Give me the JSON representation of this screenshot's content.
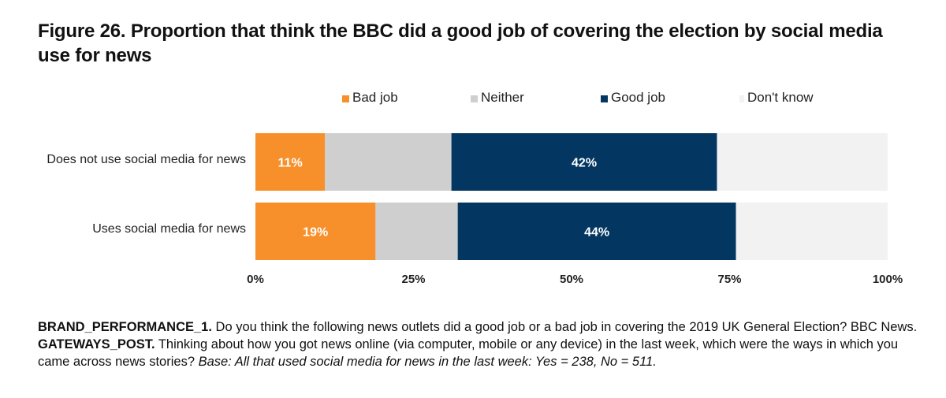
{
  "title": "Figure 26. Proportion that think the BBC did a good job of covering the election by social media use for news",
  "colors": {
    "bad": "#f7902a",
    "neither": "#cfcfcf",
    "good": "#033762",
    "dont_know": "#f2f2f2",
    "axis_text": "#222222"
  },
  "chart_data": {
    "type": "bar",
    "orientation": "horizontal",
    "stacked": true,
    "title": "Figure 26. Proportion that think the BBC did a good job of covering the election by social media use for news",
    "categories": [
      "Does not use social media for news",
      "Uses social media for news"
    ],
    "series": [
      {
        "name": "Bad job",
        "values": [
          11,
          19
        ],
        "labels": [
          "11%",
          "19%"
        ]
      },
      {
        "name": "Neither",
        "values": [
          20,
          13
        ],
        "labels": [
          "",
          ""
        ]
      },
      {
        "name": "Good job",
        "values": [
          42,
          44
        ],
        "labels": [
          "42%",
          "44%"
        ]
      },
      {
        "name": "Don't know",
        "values": [
          27,
          24
        ],
        "labels": [
          "",
          ""
        ]
      }
    ],
    "xlim": [
      0,
      100
    ],
    "ticks": [
      0,
      25,
      50,
      75,
      100
    ],
    "tick_labels": [
      "0%",
      "25%",
      "50%",
      "75%",
      "100%"
    ],
    "legend_position": "top",
    "grid": false
  },
  "footnote": {
    "q1_code": "BRAND_PERFORMANCE_1.",
    "q1_text": " Do you think the following news outlets did a good job or a bad job in covering the 2019 UK General Election? BBC News. ",
    "q2_code": "GATEWAYS_POST.",
    "q2_text": " Thinking about how you got news online (via computer, mobile or any device) in the last week, which were the ways in which you came across news stories? ",
    "base": "Base: All that used social media for news in the last week: Yes = 238, No = 511."
  }
}
